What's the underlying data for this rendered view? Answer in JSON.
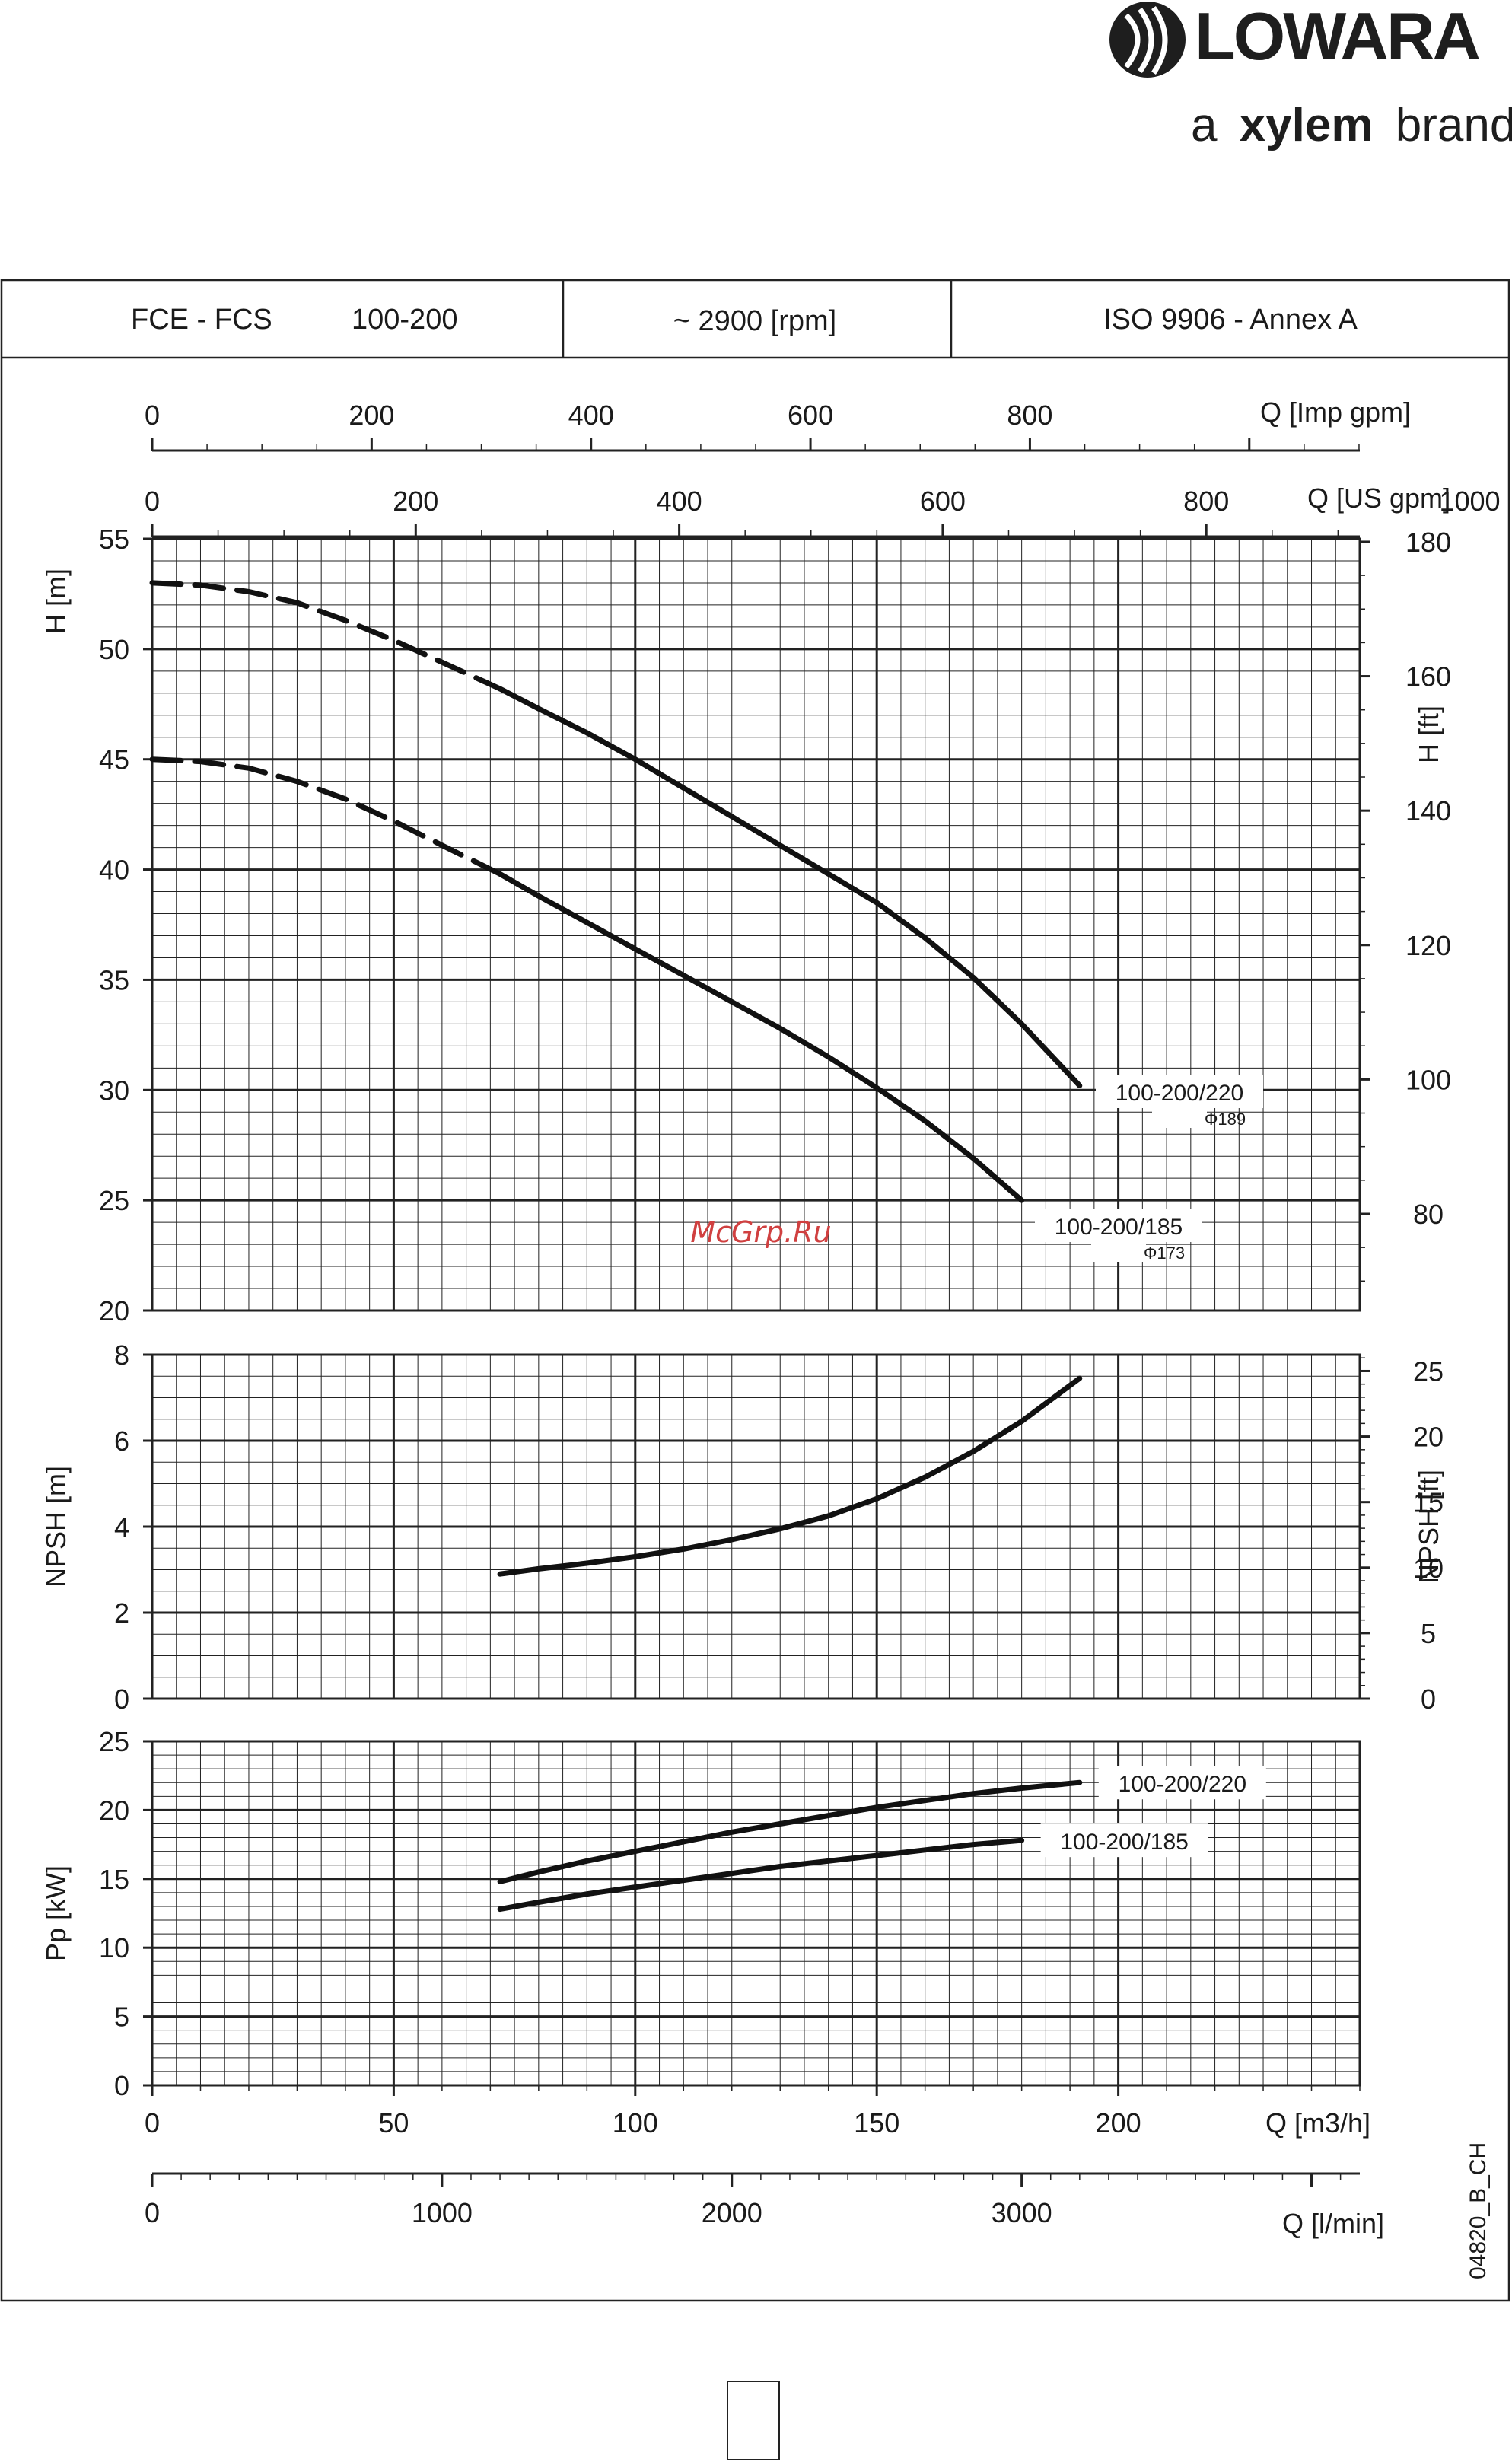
{
  "brand": {
    "name": "LOWARA",
    "tagline_prefix": "a",
    "tagline_brand": "xylem",
    "tagline_suffix": "brand"
  },
  "header": {
    "model_family": "FCE - FCS",
    "model_size": "100-200",
    "speed": "~ 2900 [rpm]",
    "standard": "ISO 9906 - Annex A"
  },
  "watermark": "McGrp.Ru",
  "drawing_code": "04820_B_CH",
  "colors": {
    "curve": "#111111",
    "grid": "#222222",
    "watermark": "#d04040"
  },
  "chart_data": [
    {
      "type": "line",
      "id": "head",
      "x_unit": "Q [m3/h]",
      "xlim": [
        0,
        250
      ],
      "ylim": [
        20,
        55
      ],
      "ylabel": "H [m]",
      "y_ticks": [
        20,
        25,
        30,
        35,
        40,
        45,
        50,
        55
      ],
      "y2label": "H [ft]",
      "y2_ticks": [
        80,
        100,
        120,
        140,
        160,
        180
      ],
      "top_axes": [
        {
          "label": "Q [Imp gpm]",
          "ticks": [
            0,
            200,
            400,
            600,
            800
          ]
        },
        {
          "label": "Q [US gpm]",
          "ticks": [
            0,
            200,
            400,
            600,
            800,
            1000
          ]
        }
      ],
      "series": [
        {
          "name": "100-200/220",
          "subname": "Φ189",
          "dashed_until": 72,
          "x": [
            0,
            10,
            20,
            30,
            40,
            50,
            60,
            72,
            80,
            90,
            100,
            110,
            120,
            130,
            140,
            150,
            160,
            170,
            180,
            192
          ],
          "y": [
            53,
            52.9,
            52.6,
            52.1,
            51.3,
            50.4,
            49.4,
            48.2,
            47.3,
            46.2,
            45,
            43.7,
            42.4,
            41.1,
            39.8,
            38.5,
            36.9,
            35.1,
            33,
            30.2
          ]
        },
        {
          "name": "100-200/185",
          "subname": "Φ173",
          "dashed_until": 72,
          "x": [
            0,
            10,
            20,
            30,
            40,
            50,
            60,
            72,
            80,
            90,
            100,
            110,
            120,
            130,
            140,
            150,
            160,
            170,
            180
          ],
          "y": [
            45,
            44.9,
            44.6,
            44,
            43.2,
            42.2,
            41.1,
            39.8,
            38.8,
            37.6,
            36.4,
            35.2,
            34,
            32.8,
            31.5,
            30.1,
            28.6,
            26.9,
            25
          ]
        }
      ]
    },
    {
      "type": "line",
      "id": "npsh",
      "x_unit": "Q [m3/h]",
      "xlim": [
        0,
        250
      ],
      "ylim": [
        0,
        8
      ],
      "ylabel": "NPSH [m]",
      "y_ticks": [
        0,
        2,
        4,
        6,
        8
      ],
      "y2label": "NPSH [ft]",
      "y2_ticks": [
        0,
        5,
        10,
        15,
        20,
        25
      ],
      "series": [
        {
          "x": [
            72,
            80,
            90,
            100,
            110,
            120,
            130,
            140,
            150,
            160,
            170,
            180,
            192
          ],
          "y": [
            2.9,
            3.02,
            3.15,
            3.3,
            3.48,
            3.7,
            3.95,
            4.25,
            4.65,
            5.15,
            5.75,
            6.45,
            7.45
          ]
        }
      ]
    },
    {
      "type": "line",
      "id": "power",
      "x_unit": "Q [m3/h]",
      "xlim": [
        0,
        250
      ],
      "ylim": [
        0,
        25
      ],
      "ylabel": "Pp [kW]",
      "y_ticks": [
        0,
        5,
        10,
        15,
        20,
        25
      ],
      "x_ticks": [
        0,
        50,
        100,
        150,
        200
      ],
      "xlabel": "Q [m3/h]",
      "x2label": "Q [l/min]",
      "x2_ticks": [
        0,
        1000,
        2000,
        3000
      ],
      "series": [
        {
          "name": "100-200/220",
          "x": [
            72,
            80,
            90,
            100,
            110,
            120,
            130,
            140,
            150,
            160,
            170,
            180,
            192
          ],
          "y": [
            14.8,
            15.5,
            16.3,
            17.0,
            17.7,
            18.4,
            19.0,
            19.6,
            20.2,
            20.7,
            21.2,
            21.6,
            22.0
          ]
        },
        {
          "name": "100-200/185",
          "x": [
            72,
            80,
            90,
            100,
            110,
            120,
            130,
            140,
            150,
            160,
            170,
            180
          ],
          "y": [
            12.8,
            13.3,
            13.9,
            14.4,
            14.9,
            15.4,
            15.9,
            16.3,
            16.7,
            17.1,
            17.5,
            17.8
          ]
        }
      ]
    }
  ]
}
